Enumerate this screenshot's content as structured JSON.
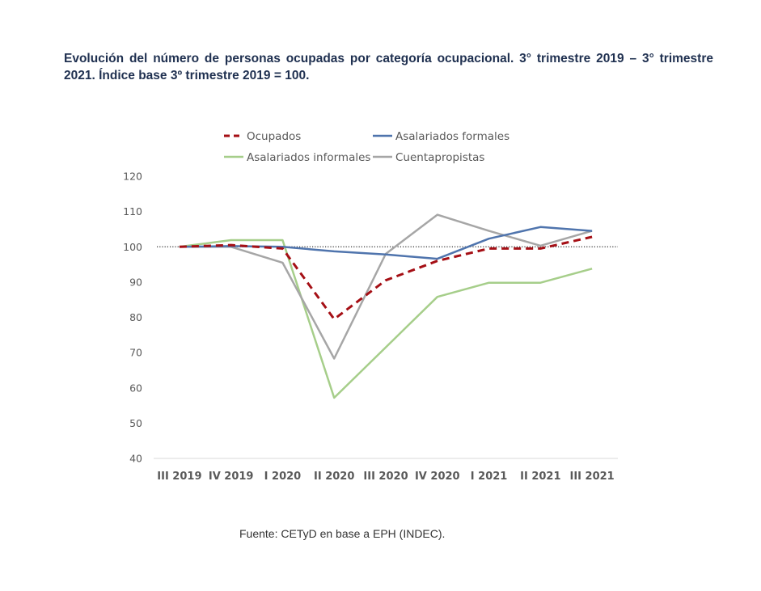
{
  "title": "Evolución del número de personas ocupadas por categoría ocupacional. 3° trimestre 2019 – 3° trimestre 2021. Índice base 3º trimestre 2019 = 100.",
  "source": "Fuente: CETyD en base a EPH (INDEC).",
  "chart_data": {
    "type": "line",
    "title": "Evolución del número de personas ocupadas por categoría ocupacional. 3° trimestre 2019 – 3° trimestre 2021. Índice base 3º trimestre 2019 = 100.",
    "xlabel": "",
    "ylabel": "",
    "categories": [
      "III 2019",
      "IV 2019",
      "I 2020",
      "II 2020",
      "III 2020",
      "IV 2020",
      "I 2021",
      "II 2021",
      "III 2021"
    ],
    "ylim": [
      40,
      120
    ],
    "yticks": [
      40,
      50,
      60,
      70,
      80,
      90,
      100,
      110,
      120
    ],
    "yticks_labels": [
      "40",
      "50",
      "60",
      "70",
      "80",
      "90",
      "100",
      "110",
      "120"
    ],
    "reference_line": 100,
    "legend_position": "top",
    "series": [
      {
        "name": "Ocupados",
        "color": "#a50f15",
        "dashed": true,
        "values": [
          100,
          100.5,
          99.5,
          79.5,
          90.5,
          96,
          99.5,
          99.5,
          102.8
        ]
      },
      {
        "name": "Asalariados formales",
        "color": "#4f74ad",
        "dashed": false,
        "values": [
          100,
          100.2,
          100,
          98.7,
          97.8,
          96.6,
          102.3,
          105.6,
          104.5
        ]
      },
      {
        "name": "Asalariados informales",
        "color": "#a6ce8a",
        "dashed": false,
        "values": [
          100,
          101.9,
          101.9,
          57.2,
          71.5,
          85.8,
          89.8,
          89.8,
          93.8
        ]
      },
      {
        "name": "Cuentapropistas",
        "color": "#a6a6a6",
        "dashed": false,
        "values": [
          100,
          100,
          95.5,
          68.3,
          98,
          109.1,
          104.5,
          100.3,
          104.5
        ]
      }
    ]
  }
}
